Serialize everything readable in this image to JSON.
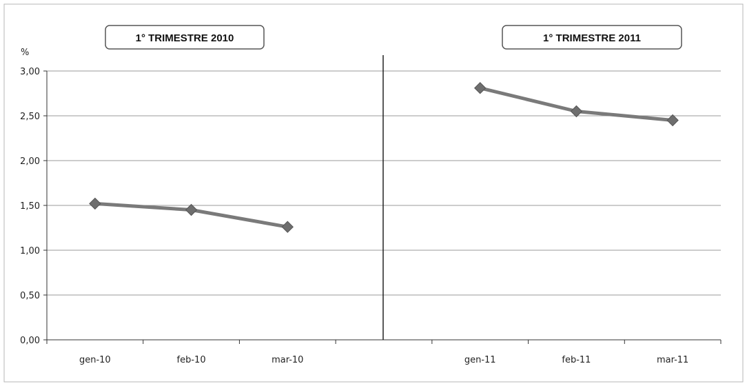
{
  "chart_data": {
    "type": "line",
    "ylabel": "%",
    "ylim": [
      0,
      3
    ],
    "yticks": [
      "0,00",
      "0,50",
      "1,00",
      "1,50",
      "2,00",
      "2,50",
      "3,00"
    ],
    "grid": true,
    "legend": "none",
    "colors": {
      "line": "#7a7a7a",
      "marker": "#6e6e6e",
      "grid": "#9a9a9a",
      "axis": "#333333"
    },
    "panels": [
      {
        "title": "1° TRIMESTRE 2010",
        "categories": [
          "gen-10",
          "feb-10",
          "mar-10"
        ],
        "values": [
          1.52,
          1.45,
          1.26
        ]
      },
      {
        "title": "1° TRIMESTRE 2011",
        "categories": [
          "gen-11",
          "feb-11",
          "mar-11"
        ],
        "values": [
          2.81,
          2.55,
          2.45
        ]
      }
    ]
  }
}
